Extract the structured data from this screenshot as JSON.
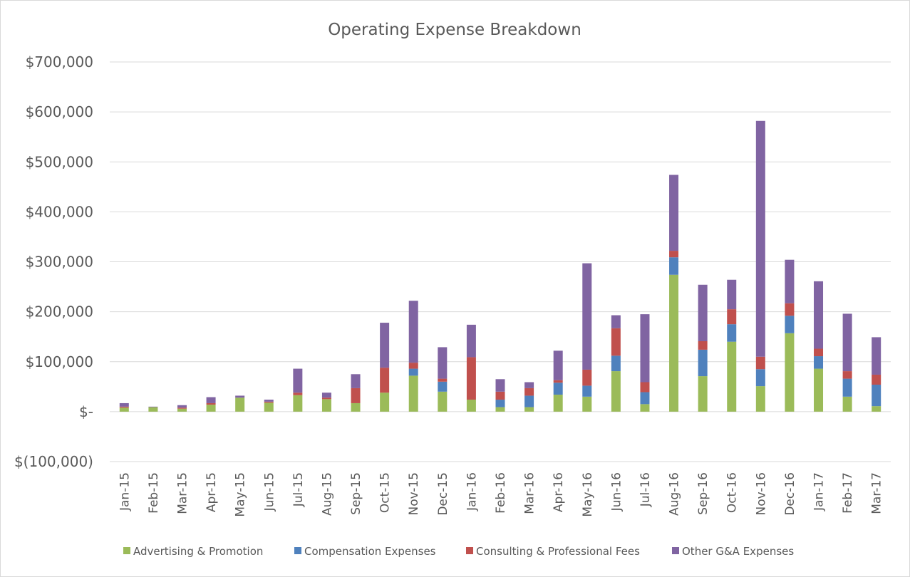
{
  "chart_data": {
    "type": "bar",
    "stacked": true,
    "title": "Operating Expense Breakdown",
    "xlabel": "",
    "ylabel": "",
    "ylim": [
      -100000,
      700000
    ],
    "yticks": [
      -100000,
      0,
      100000,
      200000,
      300000,
      400000,
      500000,
      600000,
      700000
    ],
    "ytick_labels": [
      "$(100,000)",
      "$-",
      "$100,000",
      "$200,000",
      "$300,000",
      "$400,000",
      "$500,000",
      "$600,000",
      "$700,000"
    ],
    "grid": true,
    "legend_position": "bottom",
    "categories": [
      "Jan-15",
      "Feb-15",
      "Mar-15",
      "Apr-15",
      "May-15",
      "Jun-15",
      "Jul-15",
      "Aug-15",
      "Sep-15",
      "Oct-15",
      "Nov-15",
      "Dec-15",
      "Jan-16",
      "Feb-16",
      "Mar-16",
      "Apr-16",
      "May-16",
      "Jun-16",
      "Jul-16",
      "Aug-16",
      "Sep-16",
      "Oct-16",
      "Nov-16",
      "Dec-16",
      "Jan-17",
      "Feb-17",
      "Mar-17"
    ],
    "series": [
      {
        "name": "Advertising & Promotion",
        "color": "#9bbb59",
        "values": [
          8000,
          9000,
          6000,
          14000,
          28000,
          18000,
          33000,
          25000,
          17000,
          38000,
          72000,
          40000,
          24000,
          9000,
          9000,
          34000,
          30000,
          81000,
          15000,
          274000,
          71000,
          140000,
          51000,
          157000,
          86000,
          30000,
          11000
        ]
      },
      {
        "name": "Compensation Expenses",
        "color": "#4f81bd",
        "values": [
          0,
          0,
          0,
          0,
          0,
          0,
          0,
          0,
          0,
          0,
          14000,
          20000,
          0,
          15000,
          23000,
          24000,
          22000,
          31000,
          24000,
          35000,
          53000,
          35000,
          34000,
          35000,
          25000,
          36000,
          43000
        ]
      },
      {
        "name": "Consulting & Professional Fees",
        "color": "#c0504d",
        "values": [
          2000,
          0,
          2000,
          3000,
          0,
          2000,
          5000,
          3000,
          30000,
          50000,
          12000,
          6000,
          85000,
          16000,
          15000,
          5000,
          32000,
          55000,
          20000,
          13000,
          17000,
          30000,
          25000,
          25000,
          15000,
          15000,
          20000
        ]
      },
      {
        "name": "Other G&A Expenses",
        "color": "#8064a2",
        "values": [
          7000,
          1000,
          5000,
          12000,
          4000,
          4000,
          48000,
          10000,
          28000,
          90000,
          124000,
          63000,
          65000,
          25000,
          12000,
          59000,
          213000,
          26000,
          136000,
          152000,
          113000,
          59000,
          472000,
          87000,
          135000,
          115000,
          75000
        ]
      }
    ]
  }
}
